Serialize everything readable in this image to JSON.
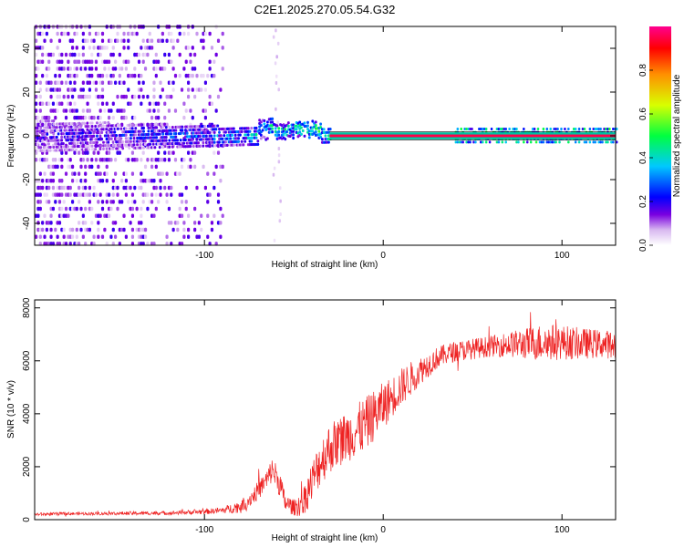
{
  "figure_title": "C2E1.2025.270.05.54.G32",
  "chart_data": [
    {
      "type": "heatmap",
      "title": "",
      "xlabel": "Height of straight line (km)",
      "ylabel": "Frequency (Hz)",
      "xlim": [
        -195,
        130
      ],
      "ylim": [
        -50,
        50
      ],
      "xticks": [
        -100,
        0,
        100
      ],
      "yticks": [
        -40,
        -20,
        0,
        20,
        40
      ],
      "colorbar": {
        "label": "Normalized spectral amplitude",
        "range": [
          0,
          1
        ],
        "ticks": [
          0,
          0.2,
          0.4,
          0.6,
          0.8
        ],
        "tick_labels": [
          "0.0",
          "0.2",
          "0.4",
          "0.6",
          "0.8"
        ],
        "colormap": [
          "#ffffff",
          "#d8b8f0",
          "#7a00e0",
          "#0000ff",
          "#00c8ff",
          "#00ff40",
          "#d8ff00",
          "#ff9000",
          "#ff0000",
          "#ff0090"
        ]
      },
      "features": [
        {
          "name": "scattered noise",
          "x_range": [
            -195,
            -90
          ],
          "y_range": [
            -50,
            50
          ],
          "amplitude": 0.1
        },
        {
          "name": "noise column",
          "x_range": [
            -62,
            -58
          ],
          "y_range": [
            -50,
            50
          ],
          "amplitude": 0.05
        },
        {
          "name": "spread band",
          "x_range": [
            -195,
            -30
          ],
          "y_center": 0,
          "y_halfwidth": [
            7,
            3
          ],
          "amplitude": [
            0.15,
            0.45
          ]
        },
        {
          "name": "narrow line",
          "x_range": [
            -30,
            130
          ],
          "y_center": 0,
          "y_halfwidth": 1,
          "amplitude": 0.95
        },
        {
          "name": "sidebands",
          "x_range": [
            40,
            130
          ],
          "y_halfwidth": 3,
          "amplitude": 0.4
        }
      ]
    },
    {
      "type": "line",
      "title": "",
      "xlabel": "Height of straight line (km)",
      "ylabel": "SNR (10 * v/v)",
      "xlim": [
        -195,
        130
      ],
      "ylim": [
        0,
        8300
      ],
      "xticks": [
        -100,
        0,
        100
      ],
      "yticks": [
        0,
        2000,
        4000,
        6000,
        8000
      ],
      "series": [
        {
          "name": "SNR",
          "color": "#ee2222",
          "x": [
            -195,
            -180,
            -160,
            -140,
            -120,
            -100,
            -90,
            -80,
            -75,
            -70,
            -65,
            -62,
            -58,
            -55,
            -50,
            -45,
            -40,
            -35,
            -30,
            -25,
            -20,
            -15,
            -10,
            -5,
            0,
            5,
            10,
            15,
            20,
            25,
            30,
            35,
            40,
            50,
            60,
            70,
            80,
            90,
            100,
            110,
            120,
            130
          ],
          "y": [
            200,
            220,
            230,
            240,
            250,
            300,
            350,
            500,
            750,
            1100,
            1500,
            1900,
            1400,
            650,
            450,
            650,
            1400,
            2200,
            2700,
            2950,
            3150,
            3350,
            3600,
            3950,
            4300,
            4650,
            5000,
            5300,
            5600,
            5850,
            6100,
            6250,
            6350,
            6450,
            6550,
            6620,
            6650,
            6700,
            6700,
            6650,
            6650,
            6600
          ],
          "noise": [
            50,
            50,
            50,
            60,
            60,
            80,
            100,
            200,
            250,
            300,
            350,
            400,
            450,
            300,
            250,
            450,
            650,
            750,
            800,
            800,
            800,
            850,
            850,
            800,
            750,
            650,
            600,
            550,
            450,
            400,
            350,
            330,
            330,
            330,
            330,
            400,
            500,
            600,
            550,
            500,
            450,
            450
          ]
        }
      ]
    }
  ]
}
